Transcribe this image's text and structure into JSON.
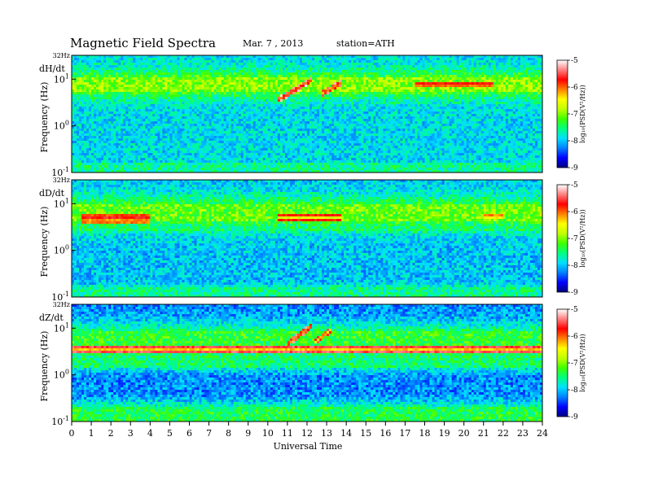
{
  "header": {
    "title": "Magnetic Field Spectra",
    "date": "Mar. 7 , 2013",
    "station": "station=ATH"
  },
  "chart_data": {
    "type": "heatmap",
    "xlabel": "Universal Time",
    "xlim": [
      0,
      24
    ],
    "x_ticks": [
      "0",
      "1",
      "2",
      "3",
      "4",
      "5",
      "6",
      "7",
      "8",
      "9",
      "10",
      "11",
      "12",
      "13",
      "14",
      "15",
      "16",
      "17",
      "18",
      "19",
      "20",
      "21",
      "22",
      "23",
      "24"
    ],
    "ylabel": "Frequency (Hz)",
    "ylim_log10": [
      -1,
      1.51
    ],
    "y_ticks": [
      {
        "exp": -1,
        "label": "10",
        "sup": "-1"
      },
      {
        "exp": 0,
        "label": "10",
        "sup": "0"
      },
      {
        "exp": 1,
        "label": "10",
        "sup": "1"
      }
    ],
    "top_freq_label": "32Hz",
    "colorbar": {
      "label": "log₁₀(PSD(V²/Hz))",
      "range": [
        -9,
        -5
      ],
      "ticks": [
        "-5",
        "-6",
        "-7",
        "-8",
        "-9"
      ],
      "colormap": [
        "#000080",
        "#0000ff",
        "#0080ff",
        "#00e0ff",
        "#00ff80",
        "#40ff00",
        "#c0ff00",
        "#ffff00",
        "#ff8000",
        "#ff0000",
        "#ff8080",
        "#ffffff"
      ]
    },
    "panels": [
      {
        "name": "dH/dt",
        "label": "dH/dt",
        "background_level": -8.3,
        "bands": [
          {
            "f_lo": 5.5,
            "f_hi": 11.0,
            "level": -7.0
          },
          {
            "f_lo": 3.0,
            "f_hi": 4.5,
            "level": -7.7
          },
          {
            "f_lo": 13.0,
            "f_hi": 16.0,
            "level": -7.9
          },
          {
            "f_lo": 0.1,
            "f_hi": 0.16,
            "level": -7.6
          },
          {
            "f_lo": 20.0,
            "f_hi": 32.0,
            "level": -8.8
          }
        ],
        "features": [
          {
            "t_start": 17.5,
            "t_end": 21.5,
            "f": 7.5,
            "level": -6.2
          },
          {
            "t_start": 10.5,
            "t_end": 12.3,
            "f_start": 3.5,
            "f_end": 10.0,
            "level": -6.0
          },
          {
            "t_start": 12.8,
            "t_end": 13.8,
            "f_start": 5.0,
            "f_end": 8.5,
            "level": -6.2
          }
        ]
      },
      {
        "name": "dD/dt",
        "label": "dD/dt",
        "background_level": -8.3,
        "bands": [
          {
            "f_lo": 4.0,
            "f_hi": 10.0,
            "level": -7.1
          },
          {
            "f_lo": 2.5,
            "f_hi": 3.5,
            "level": -7.5
          },
          {
            "f_lo": 14.0,
            "f_hi": 18.0,
            "level": -8.0
          },
          {
            "f_lo": 0.1,
            "f_hi": 0.17,
            "level": -7.6
          },
          {
            "f_lo": 20.0,
            "f_hi": 32.0,
            "level": -8.9
          }
        ],
        "features": [
          {
            "t_start": 0.5,
            "t_end": 4.0,
            "f": 5.4,
            "level": -6.1
          },
          {
            "t_start": 0.5,
            "t_end": 4.0,
            "f": 4.2,
            "level": -6.4
          },
          {
            "t_start": 10.5,
            "t_end": 13.8,
            "f": 5.0,
            "level": -6.6
          },
          {
            "t_start": 21.0,
            "t_end": 22.0,
            "f": 5.2,
            "level": -6.6
          }
        ]
      },
      {
        "name": "dZ/dt",
        "label": "dZ/dt",
        "background_level": -8.2,
        "bands": [
          {
            "f_lo": 4.0,
            "f_hi": 9.0,
            "level": -7.3
          },
          {
            "f_lo": 1.5,
            "f_hi": 3.0,
            "level": -7.5
          },
          {
            "f_lo": 0.1,
            "f_hi": 0.2,
            "level": -7.4
          },
          {
            "f_lo": 18.0,
            "f_hi": 32.0,
            "level": -9.0
          }
        ],
        "features": [
          {
            "t_start": 0.0,
            "t_end": 24.0,
            "f": 3.5,
            "level": -6.3
          },
          {
            "t_start": 11.0,
            "t_end": 12.2,
            "f_start": 4.5,
            "f_end": 11.0,
            "level": -6.2
          },
          {
            "t_start": 12.4,
            "t_end": 13.2,
            "f_start": 5.0,
            "f_end": 9.0,
            "level": -6.4
          }
        ]
      }
    ]
  }
}
